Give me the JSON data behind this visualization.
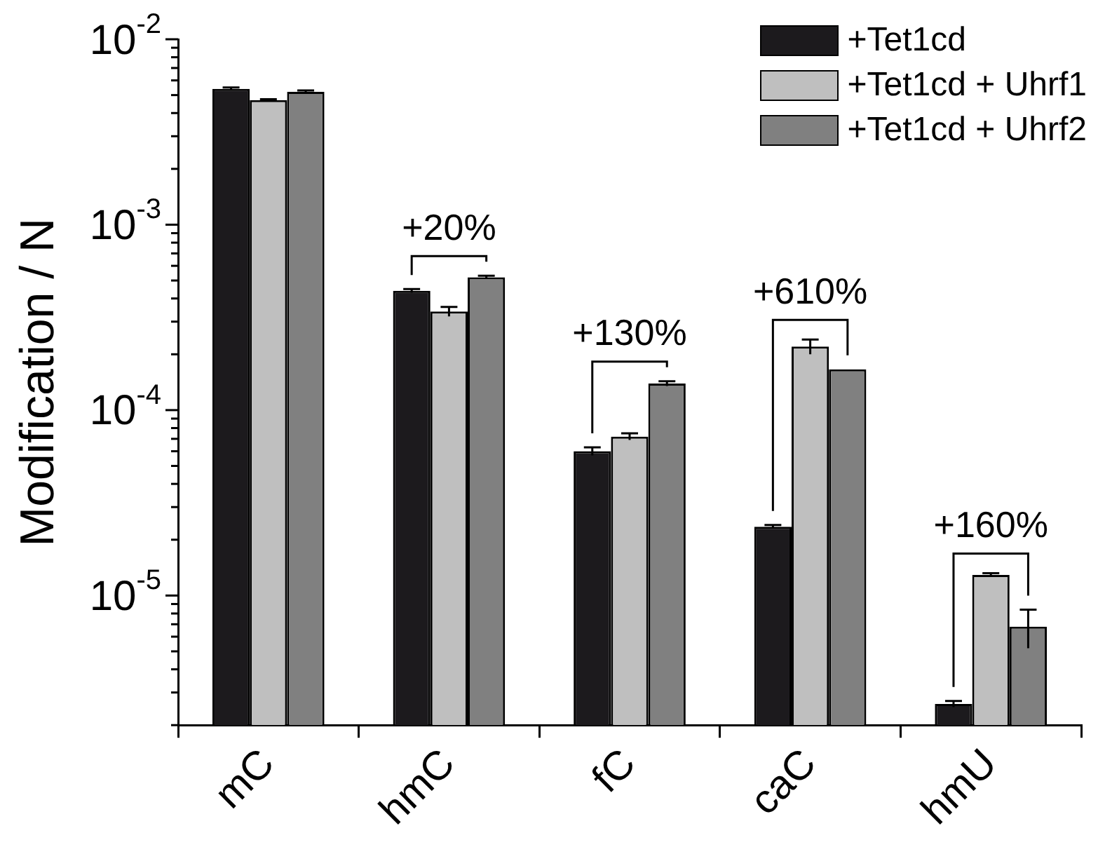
{
  "chart_data": {
    "type": "bar",
    "ylabel": "Modification / N",
    "categories": [
      "mC",
      "hmC",
      "fC",
      "caC",
      "hmU"
    ],
    "series": [
      {
        "name": "+Tet1cd",
        "color": "#1c1a1d",
        "values": [
          0.0054,
          0.00044,
          6e-05,
          2.35e-05,
          2.6e-06
        ],
        "errors": [
          0.0001,
          1e-05,
          3e-06,
          5e-07,
          1e-07
        ]
      },
      {
        "name": "+Tet1cd + Uhrf1",
        "color": "#bfbfbf",
        "values": [
          0.0047,
          0.00034,
          7.2e-05,
          0.00022,
          1.29e-05
        ],
        "errors": [
          5e-05,
          2e-05,
          3e-06,
          2e-05,
          3e-07
        ]
      },
      {
        "name": "+Tet1cd + Uhrf2",
        "color": "#808080",
        "values": [
          0.0052,
          0.00052,
          0.000139,
          0.000166,
          6.8e-06
        ],
        "errors": [
          0.0001,
          1e-05,
          4e-06,
          null,
          1.6e-06
        ]
      }
    ],
    "log": true,
    "ylim": [
      2e-06,
      0.01
    ],
    "yticks": [
      {
        "value": 2e-06,
        "label": null
      },
      {
        "value": 3e-06,
        "label": null
      },
      {
        "value": 4e-06,
        "label": null
      },
      {
        "value": 5e-06,
        "label": null
      },
      {
        "value": 6e-06,
        "label": null
      },
      {
        "value": 7e-06,
        "label": null
      },
      {
        "value": 8e-06,
        "label": null
      },
      {
        "value": 9e-06,
        "label": null
      },
      {
        "value": 1e-05,
        "label": "10$^{-5}$"
      },
      {
        "value": 2e-05,
        "label": null
      },
      {
        "value": 3e-05,
        "label": null
      },
      {
        "value": 4e-05,
        "label": null
      },
      {
        "value": 5e-05,
        "label": null
      },
      {
        "value": 6e-05,
        "label": null
      },
      {
        "value": 7e-05,
        "label": null
      },
      {
        "value": 8e-05,
        "label": null
      },
      {
        "value": 9e-05,
        "label": null
      },
      {
        "value": 0.0001,
        "label": "10$^{-4}$"
      },
      {
        "value": 0.0002,
        "label": null
      },
      {
        "value": 0.0003,
        "label": null
      },
      {
        "value": 0.0004,
        "label": null
      },
      {
        "value": 0.0005,
        "label": null
      },
      {
        "value": 0.0006,
        "label": null
      },
      {
        "value": 0.0007,
        "label": null
      },
      {
        "value": 0.0008,
        "label": null
      },
      {
        "value": 0.0009,
        "label": null
      },
      {
        "value": 0.001,
        "label": "10$^{-3}$"
      },
      {
        "value": 0.002,
        "label": null
      },
      {
        "value": 0.003,
        "label": null
      },
      {
        "value": 0.004,
        "label": null
      },
      {
        "value": 0.005,
        "label": null
      },
      {
        "value": 0.006,
        "label": null
      },
      {
        "value": 0.007,
        "label": null
      },
      {
        "value": 0.008,
        "label": null
      },
      {
        "value": 0.009,
        "label": null
      },
      {
        "value": 0.01,
        "label": "10$^{-2}$"
      }
    ],
    "grid": false,
    "legend": "top right",
    "annotations": [
      "+20%",
      "+130%",
      "+610%",
      "+160%"
    ]
  }
}
